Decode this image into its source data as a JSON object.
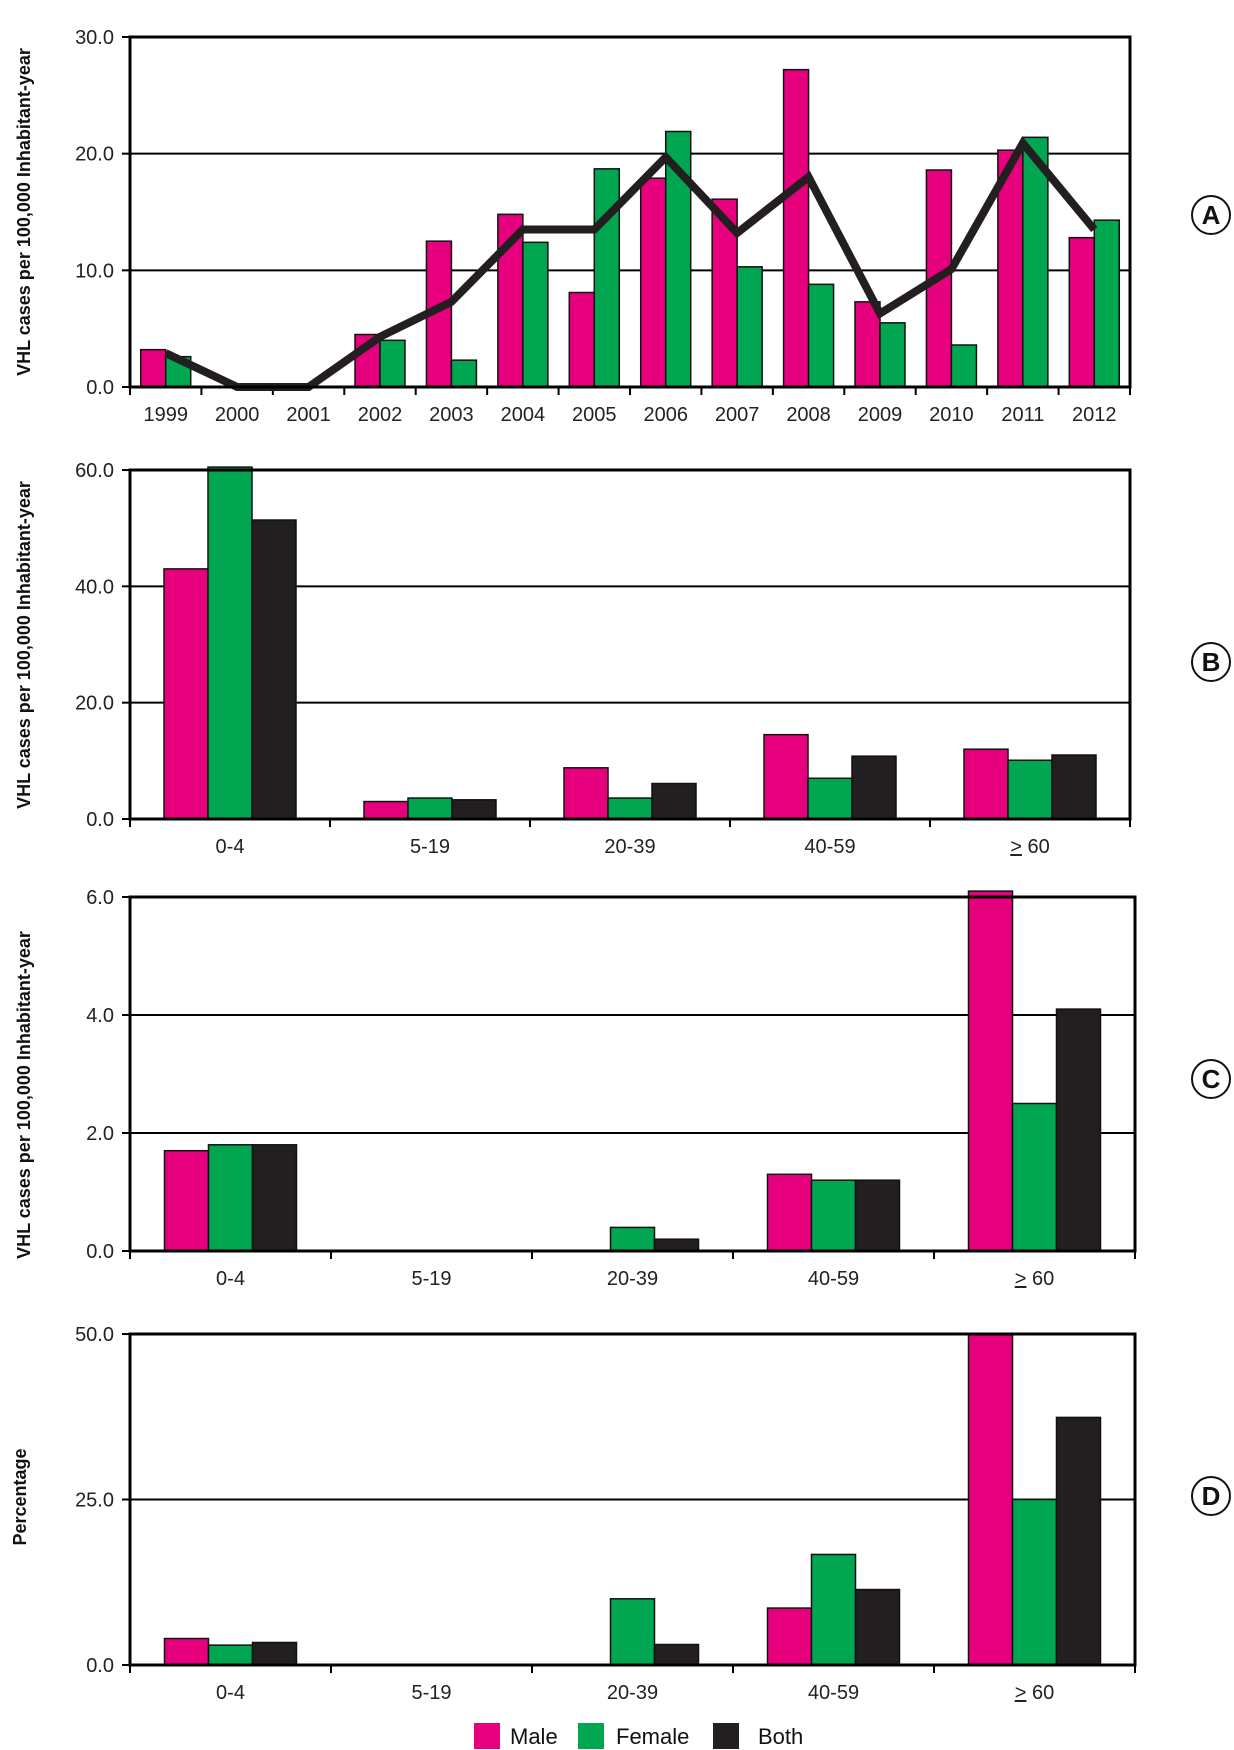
{
  "colors": {
    "male": "#e6007e",
    "female": "#00a650",
    "both": "#231f20",
    "line": "#231f20",
    "grid": "#000000"
  },
  "ylabel_rate": "VHL cases per 100,000 Inhabitant-year",
  "ylabel_pct": "Percentage",
  "legend": [
    {
      "label": "Male",
      "color": "#e6007e"
    },
    {
      "label": "Female",
      "color": "#00a650"
    },
    {
      "label": "Both",
      "color": "#231f20"
    }
  ],
  "chart_data": [
    {
      "panel": "A",
      "type": "bar",
      "ylabel": "VHL cases per 100,000 Inhabitant-year",
      "ylim": [
        0,
        30
      ],
      "yticks": [
        "0.0",
        "10.0",
        "20.0",
        "30.0"
      ],
      "categories": [
        "1999",
        "2000",
        "2001",
        "2002",
        "2003",
        "2004",
        "2005",
        "2006",
        "2007",
        "2008",
        "2009",
        "2010",
        "2011",
        "2012"
      ],
      "series": [
        {
          "key": "male",
          "values": [
            3.2,
            0,
            0,
            4.5,
            12.5,
            14.8,
            8.1,
            17.9,
            16.1,
            27.2,
            7.3,
            18.6,
            20.3,
            12.8
          ]
        },
        {
          "key": "female",
          "values": [
            2.6,
            0,
            0,
            4.0,
            2.3,
            12.4,
            18.7,
            21.9,
            10.3,
            8.8,
            5.5,
            3.6,
            21.4,
            14.3
          ]
        }
      ],
      "line": {
        "key": "both",
        "type": "line",
        "values": [
          2.9,
          0,
          0,
          4.3,
          7.3,
          13.5,
          13.5,
          19.7,
          13.2,
          18.0,
          6.3,
          10.1,
          20.9,
          13.5
        ]
      }
    },
    {
      "panel": "B",
      "type": "bar",
      "ylabel": "VHL cases per 100,000 Inhabitant-year",
      "ylim": [
        0,
        60
      ],
      "yticks": [
        "0.0",
        "20.0",
        "40.0",
        "60.0"
      ],
      "categories": [
        "0-4",
        "5-19",
        "20-39",
        "40-59",
        "> 60"
      ],
      "series": [
        {
          "key": "male",
          "values": [
            43.0,
            3.0,
            8.8,
            14.5,
            12.0
          ]
        },
        {
          "key": "female",
          "values": [
            60.5,
            3.6,
            3.6,
            7.0,
            10.1
          ]
        },
        {
          "key": "both",
          "values": [
            51.4,
            3.3,
            6.1,
            10.8,
            11.0
          ]
        }
      ]
    },
    {
      "panel": "C",
      "type": "bar",
      "ylabel": "VHL cases per 100,000 Inhabitant-year",
      "ylim": [
        0,
        6
      ],
      "yticks": [
        "0.0",
        "2.0",
        "4.0",
        "6.0"
      ],
      "categories": [
        "0-4",
        "5-19",
        "20-39",
        "40-59",
        "> 60"
      ],
      "series": [
        {
          "key": "male",
          "values": [
            1.7,
            0,
            0,
            1.3,
            6.1
          ]
        },
        {
          "key": "female",
          "values": [
            1.8,
            0,
            0.4,
            1.2,
            2.5
          ]
        },
        {
          "key": "both",
          "values": [
            1.8,
            0,
            0.2,
            1.2,
            4.1
          ]
        }
      ]
    },
    {
      "panel": "D",
      "type": "bar",
      "ylabel": "Percentage",
      "ylim": [
        0,
        50
      ],
      "yticks": [
        "0.0",
        "25.0",
        "50.0"
      ],
      "categories": [
        "0-4",
        "5-19",
        "20-39",
        "40-59",
        "> 60"
      ],
      "series": [
        {
          "key": "male",
          "values": [
            4.0,
            0,
            0,
            8.6,
            50.0
          ]
        },
        {
          "key": "female",
          "values": [
            3.0,
            0,
            10.0,
            16.7,
            25.0
          ]
        },
        {
          "key": "both",
          "values": [
            3.4,
            0,
            3.1,
            11.4,
            37.4
          ]
        }
      ]
    }
  ]
}
